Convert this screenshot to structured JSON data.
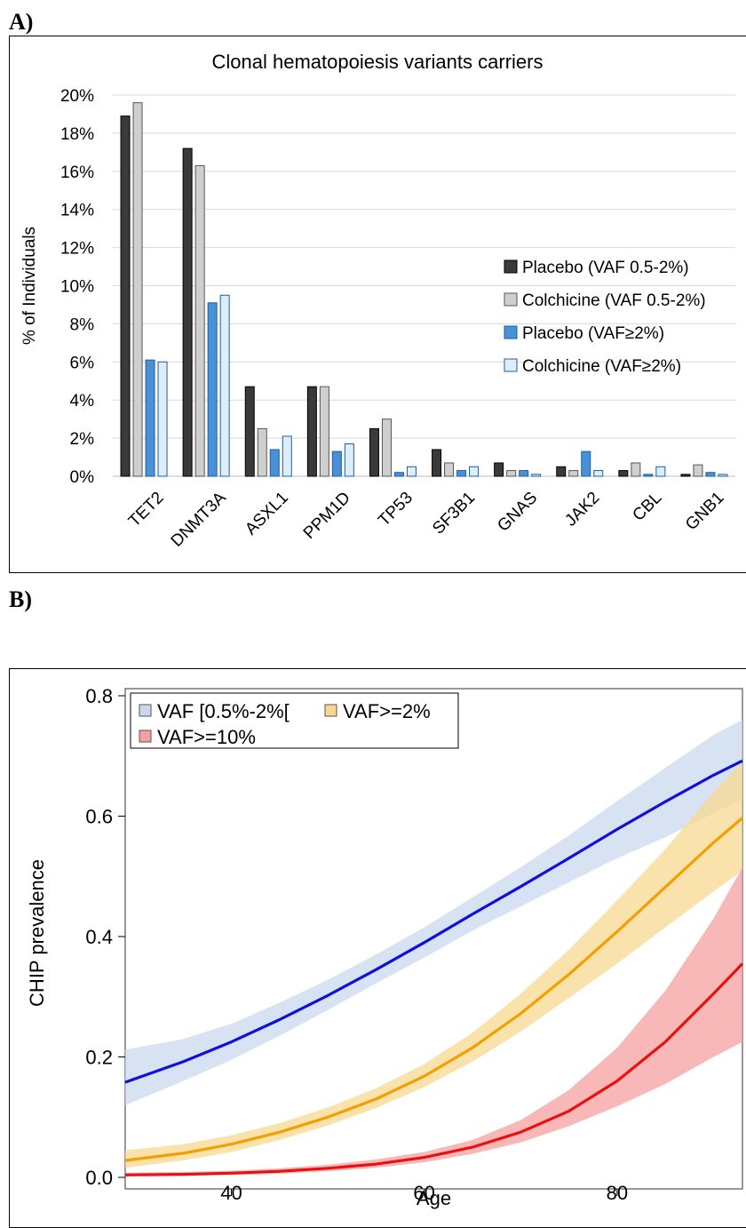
{
  "panel_a_label": "A)",
  "panel_b_label": "B)",
  "chart_data": [
    {
      "type": "bar",
      "title": "Clonal hematopoiesis variants carriers",
      "xlabel": "",
      "ylabel": "% of Individuals",
      "ylim": [
        0,
        20
      ],
      "y_tick_labels": [
        "0%",
        "2%",
        "4%",
        "6%",
        "8%",
        "10%",
        "12%",
        "14%",
        "16%",
        "18%",
        "20%"
      ],
      "grid": true,
      "legend_position": "right",
      "categories": [
        "TET2",
        "DNMT3A",
        "ASXL1",
        "PPM1D",
        "TP53",
        "SF3B1",
        "GNAS",
        "JAK2",
        "CBL",
        "GNB1"
      ],
      "series": [
        {
          "name": "Placebo (VAF 0.5-2%)",
          "color": "#3a3a3a",
          "values": [
            18.9,
            17.2,
            4.7,
            4.7,
            2.5,
            1.4,
            0.7,
            0.5,
            0.3,
            0.1
          ]
        },
        {
          "name": "Colchicine (VAF 0.5-2%)",
          "color": "#cfcfcf",
          "values": [
            19.6,
            16.3,
            2.5,
            4.7,
            3.0,
            0.7,
            0.3,
            0.3,
            0.7,
            0.6
          ]
        },
        {
          "name": "Placebo (VAF≥2%)",
          "color": "#4a90d6",
          "values": [
            6.1,
            9.1,
            1.4,
            1.3,
            0.2,
            0.3,
            0.3,
            1.3,
            0.1,
            0.2
          ]
        },
        {
          "name": "Colchicine (VAF≥2%)",
          "color": "#ddeefa",
          "values": [
            6.0,
            9.5,
            2.1,
            1.7,
            0.5,
            0.5,
            0.1,
            0.3,
            0.5,
            0.1
          ]
        }
      ]
    },
    {
      "type": "line",
      "title": "",
      "xlabel": "Age",
      "ylabel": "CHIP prevalence",
      "xlim": [
        29,
        93
      ],
      "ylim": [
        0,
        0.8
      ],
      "x_ticks": [
        40,
        60,
        80
      ],
      "x_tick_labels": [
        "40",
        "60",
        "80"
      ],
      "y_ticks": [
        0,
        0.2,
        0.4,
        0.6,
        0.8
      ],
      "y_tick_labels": [
        "0.0",
        "0.2",
        "0.4",
        "0.6",
        "0.8"
      ],
      "grid": false,
      "legend_position": "top-left",
      "series": [
        {
          "name": "VAF [0.5%-2%[",
          "color": "#1010d8",
          "band_color": "#c9d8ee",
          "x": [
            29,
            35,
            40,
            45,
            50,
            55,
            60,
            65,
            70,
            75,
            80,
            85,
            90,
            93
          ],
          "y": [
            0.158,
            0.192,
            0.225,
            0.262,
            0.302,
            0.345,
            0.39,
            0.437,
            0.483,
            0.53,
            0.578,
            0.624,
            0.668,
            0.692
          ],
          "lower": [
            0.12,
            0.16,
            0.195,
            0.235,
            0.278,
            0.322,
            0.365,
            0.41,
            0.45,
            0.49,
            0.53,
            0.565,
            0.605,
            0.628
          ],
          "upper": [
            0.212,
            0.23,
            0.255,
            0.29,
            0.328,
            0.37,
            0.415,
            0.465,
            0.515,
            0.568,
            0.625,
            0.68,
            0.735,
            0.76
          ]
        },
        {
          "name": "VAF>=2%",
          "color": "#f0a000",
          "band_color": "#f8d890",
          "x": [
            29,
            35,
            40,
            45,
            50,
            55,
            60,
            65,
            70,
            75,
            80,
            85,
            90,
            93
          ],
          "y": [
            0.028,
            0.04,
            0.055,
            0.075,
            0.1,
            0.13,
            0.168,
            0.215,
            0.272,
            0.337,
            0.408,
            0.482,
            0.556,
            0.597
          ],
          "lower": [
            0.016,
            0.028,
            0.042,
            0.062,
            0.086,
            0.115,
            0.15,
            0.192,
            0.242,
            0.298,
            0.355,
            0.415,
            0.475,
            0.51
          ],
          "upper": [
            0.045,
            0.055,
            0.07,
            0.09,
            0.116,
            0.148,
            0.188,
            0.24,
            0.305,
            0.378,
            0.46,
            0.545,
            0.64,
            0.69
          ]
        },
        {
          "name": "VAF>=10%",
          "color": "#e81010",
          "band_color": "#f5a0a0",
          "x": [
            29,
            35,
            40,
            45,
            50,
            55,
            60,
            65,
            70,
            75,
            80,
            85,
            90,
            93
          ],
          "y": [
            0.004,
            0.005,
            0.007,
            0.01,
            0.015,
            0.022,
            0.033,
            0.05,
            0.075,
            0.11,
            0.16,
            0.225,
            0.305,
            0.355
          ],
          "lower": [
            0.002,
            0.003,
            0.004,
            0.006,
            0.01,
            0.016,
            0.025,
            0.039,
            0.058,
            0.085,
            0.118,
            0.155,
            0.2,
            0.225
          ],
          "upper": [
            0.008,
            0.009,
            0.011,
            0.015,
            0.021,
            0.03,
            0.042,
            0.062,
            0.095,
            0.145,
            0.215,
            0.31,
            0.43,
            0.515
          ]
        }
      ]
    }
  ]
}
